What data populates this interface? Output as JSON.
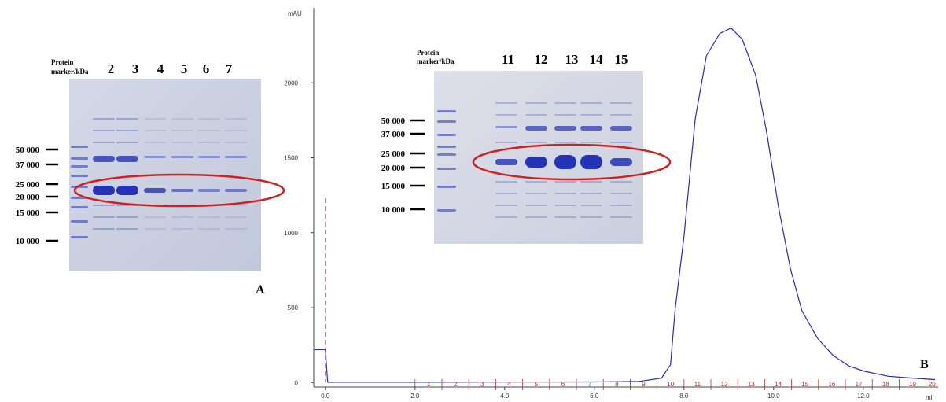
{
  "panel_a": {
    "label": "A",
    "marker_title": [
      "Protein",
      "marker/kDa"
    ],
    "lanes": [
      "2",
      "3",
      "4",
      "5",
      "6",
      "7"
    ],
    "markers": [
      "50 000",
      "37 000",
      "25 000",
      "20 000",
      "15 000",
      "10 000"
    ]
  },
  "chart_data": {
    "type": "line",
    "label": "B",
    "y_axis_label": "mAU",
    "x_axis_label": "ml",
    "xlim": [
      -0.26,
      13.67
    ],
    "ylim": [
      -30,
      2500
    ],
    "xticks": [
      {
        "value": 0,
        "label": "0.0"
      },
      {
        "value": 2,
        "label": "2.0"
      },
      {
        "value": 4,
        "label": "4.0"
      },
      {
        "value": 6,
        "label": "6.0"
      },
      {
        "value": 8,
        "label": "8.0"
      },
      {
        "value": 10,
        "label": "10.0"
      },
      {
        "value": 12,
        "label": "12.0"
      }
    ],
    "yticks": [
      0,
      500,
      1000,
      1500,
      2000
    ],
    "series": [
      {
        "color": "#2b2bb0",
        "x": [
          -0.26,
          0,
          0.05,
          2,
          4,
          6,
          7,
          7.5,
          7.7,
          7.8,
          8.0,
          8.25,
          8.5,
          8.8,
          9.05,
          9.3,
          9.6,
          9.85,
          10.1,
          10.37,
          10.63,
          10.98,
          11.33,
          11.68,
          12.03,
          12.56,
          13.1,
          13.6
        ],
        "values": [
          220,
          220,
          2,
          2,
          3,
          4,
          8,
          30,
          120,
          480,
          975,
          1760,
          2180,
          2330,
          2365,
          2290,
          2050,
          1660,
          1185,
          765,
          480,
          295,
          180,
          110,
          75,
          42,
          30,
          20
        ]
      }
    ],
    "injection_mark": {
      "color": "#c040a0",
      "x": 0,
      "y": 1230
    },
    "fraction_color": "#b03030",
    "fractions": [
      "1",
      "2",
      "3",
      "4",
      "5",
      "6",
      "7",
      "8",
      "9",
      "10",
      "11",
      "12",
      "13",
      "14",
      "15",
      "16",
      "17",
      "18",
      "19",
      "20"
    ],
    "fraction_starts": [
      2.0,
      2.6,
      3.2,
      3.8,
      4.4,
      5.0,
      5.6,
      6.2,
      6.8,
      7.4,
      8.0,
      8.6,
      9.2,
      9.8,
      10.4,
      11.0,
      11.6,
      12.2,
      12.8,
      13.4
    ],
    "inset": {
      "marker_title": [
        "Protein",
        "marker/kDa"
      ],
      "lanes": [
        "11",
        "12",
        "13",
        "14",
        "15"
      ],
      "markers": [
        "50 000",
        "37 000",
        "25 000",
        "20 000",
        "15 000",
        "10 000"
      ]
    }
  }
}
